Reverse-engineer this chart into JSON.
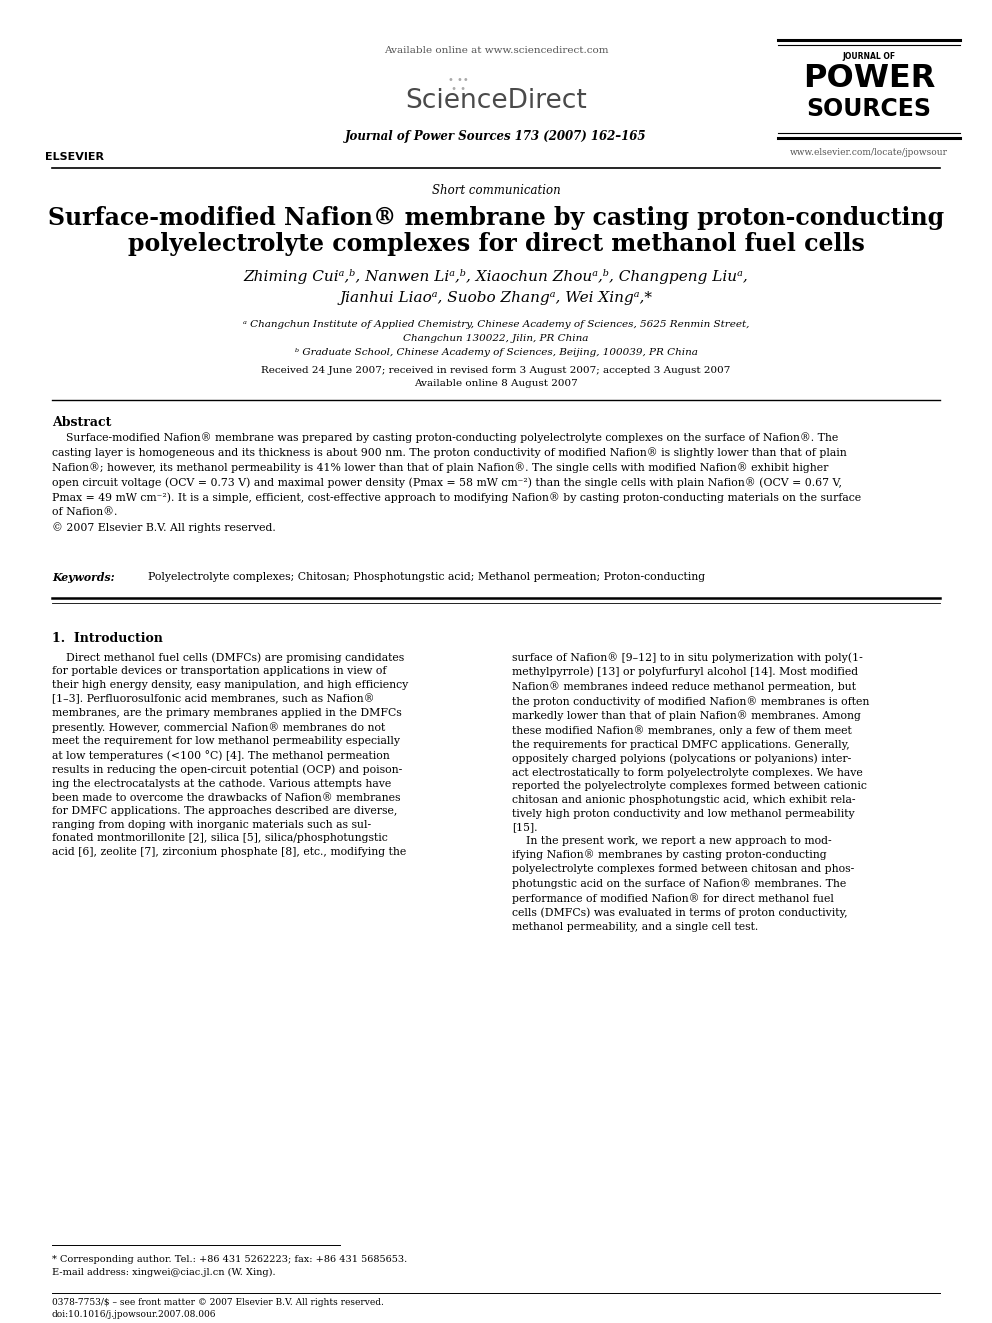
{
  "bg_color": "#ffffff",
  "available_online": "Available online at www.sciencedirect.com",
  "journal_line": "Journal of Power Sources 173 (2007) 162–165",
  "elsevier_url": "www.elsevier.com/locate/jpowsour",
  "section_label": "Short communication",
  "title_line1": "Surface-modified Nafion® membrane by casting proton-conducting",
  "title_line2": "polyelectrolyte complexes for direct methanol fuel cells",
  "authors_line1": "Zhiming Cuiᵃ,ᵇ, Nanwen Liᵃ,ᵇ, Xiaochun Zhouᵃ,ᵇ, Changpeng Liuᵃ,",
  "authors_line2": "Jianhui Liaoᵃ, Suobo Zhangᵃ, Wei Xingᵃ,*",
  "affil_a": "ᵃ Changchun Institute of Applied Chemistry, Chinese Academy of Sciences, 5625 Renmin Street,",
  "affil_a2": "Changchun 130022, Jilin, PR China",
  "affil_b": "ᵇ Graduate School, Chinese Academy of Sciences, Beijing, 100039, PR China",
  "received": "Received 24 June 2007; received in revised form 3 August 2007; accepted 3 August 2007",
  "available": "Available online 8 August 2007",
  "abstract_title": "Abstract",
  "abstract_body": "    Surface-modified Nafion® membrane was prepared by casting proton-conducting polyelectrolyte complexes on the surface of Nafion®. The\ncasting layer is homogeneous and its thickness is about 900 nm. The proton conductivity of modified Nafion® is slightly lower than that of plain\nNafion®; however, its methanol permeability is 41% lower than that of plain Nafion®. The single cells with modified Nafion® exhibit higher\nopen circuit voltage (OCV = 0.73 V) and maximal power density (Pmax = 58 mW cm⁻²) than the single cells with plain Nafion® (OCV = 0.67 V,\nPmax = 49 mW cm⁻²). It is a simple, efficient, cost-effective approach to modifying Nafion® by casting proton-conducting materials on the surface\nof Nafion®.\n© 2007 Elsevier B.V. All rights reserved.",
  "keywords_label": "Keywords:",
  "keywords_text": "Polyelectrolyte complexes; Chitosan; Phosphotungstic acid; Methanol permeation; Proton-conducting",
  "section1_title": "1.  Introduction",
  "col1_body": "    Direct methanol fuel cells (DMFCs) are promising candidates\nfor portable devices or transportation applications in view of\ntheir high energy density, easy manipulation, and high efficiency\n[1–3]. Perfluorosulfonic acid membranes, such as Nafion®\nmembranes, are the primary membranes applied in the DMFCs\npresently. However, commercial Nafion® membranes do not\nmeet the requirement for low methanol permeability especially\nat low temperatures (<100 °C) [4]. The methanol permeation\nresults in reducing the open-circuit potential (OCP) and poison-\ning the electrocatalysts at the cathode. Various attempts have\nbeen made to overcome the drawbacks of Nafion® membranes\nfor DMFC applications. The approaches described are diverse,\nranging from doping with inorganic materials such as sul-\nfonated montmorillonite [2], silica [5], silica/phosphotungstic\nacid [6], zeolite [7], zirconium phosphate [8], etc., modifying the",
  "col2_body": "surface of Nafion® [9–12] to in situ polymerization with poly(1-\nmethylpyrrole) [13] or polyfurfuryl alcohol [14]. Most modified\nNafion® membranes indeed reduce methanol permeation, but\nthe proton conductivity of modified Nafion® membranes is often\nmarkedly lower than that of plain Nafion® membranes. Among\nthese modified Nafion® membranes, only a few of them meet\nthe requirements for practical DMFC applications. Generally,\noppositely charged polyions (polycations or polyanions) inter-\nact electrostatically to form polyelectrolyte complexes. We have\nreported the polyelectrolyte complexes formed between cationic\nchitosan and anionic phosphotungstic acid, which exhibit rela-\ntively high proton conductivity and low methanol permeability\n[15].\n    In the present work, we report a new approach to mod-\nifying Nafion® membranes by casting proton-conducting\npolyelectrolyte complexes formed between chitosan and phos-\nphotungstic acid on the surface of Nafion® membranes. The\nperformance of modified Nafion® for direct methanol fuel\ncells (DMFCs) was evaluated in terms of proton conductivity,\nmethanol permeability, and a single cell test.",
  "footnote_star": "* Corresponding author. Tel.: +86 431 5262223; fax: +86 431 5685653.",
  "footnote_email": "E-mail address: xingwei@ciac.jl.cn (W. Xing).",
  "bottom_line1": "0378-7753/$ – see front matter © 2007 Elsevier B.V. All rights reserved.",
  "bottom_line2": "doi:10.1016/j.jpowsour.2007.08.006"
}
